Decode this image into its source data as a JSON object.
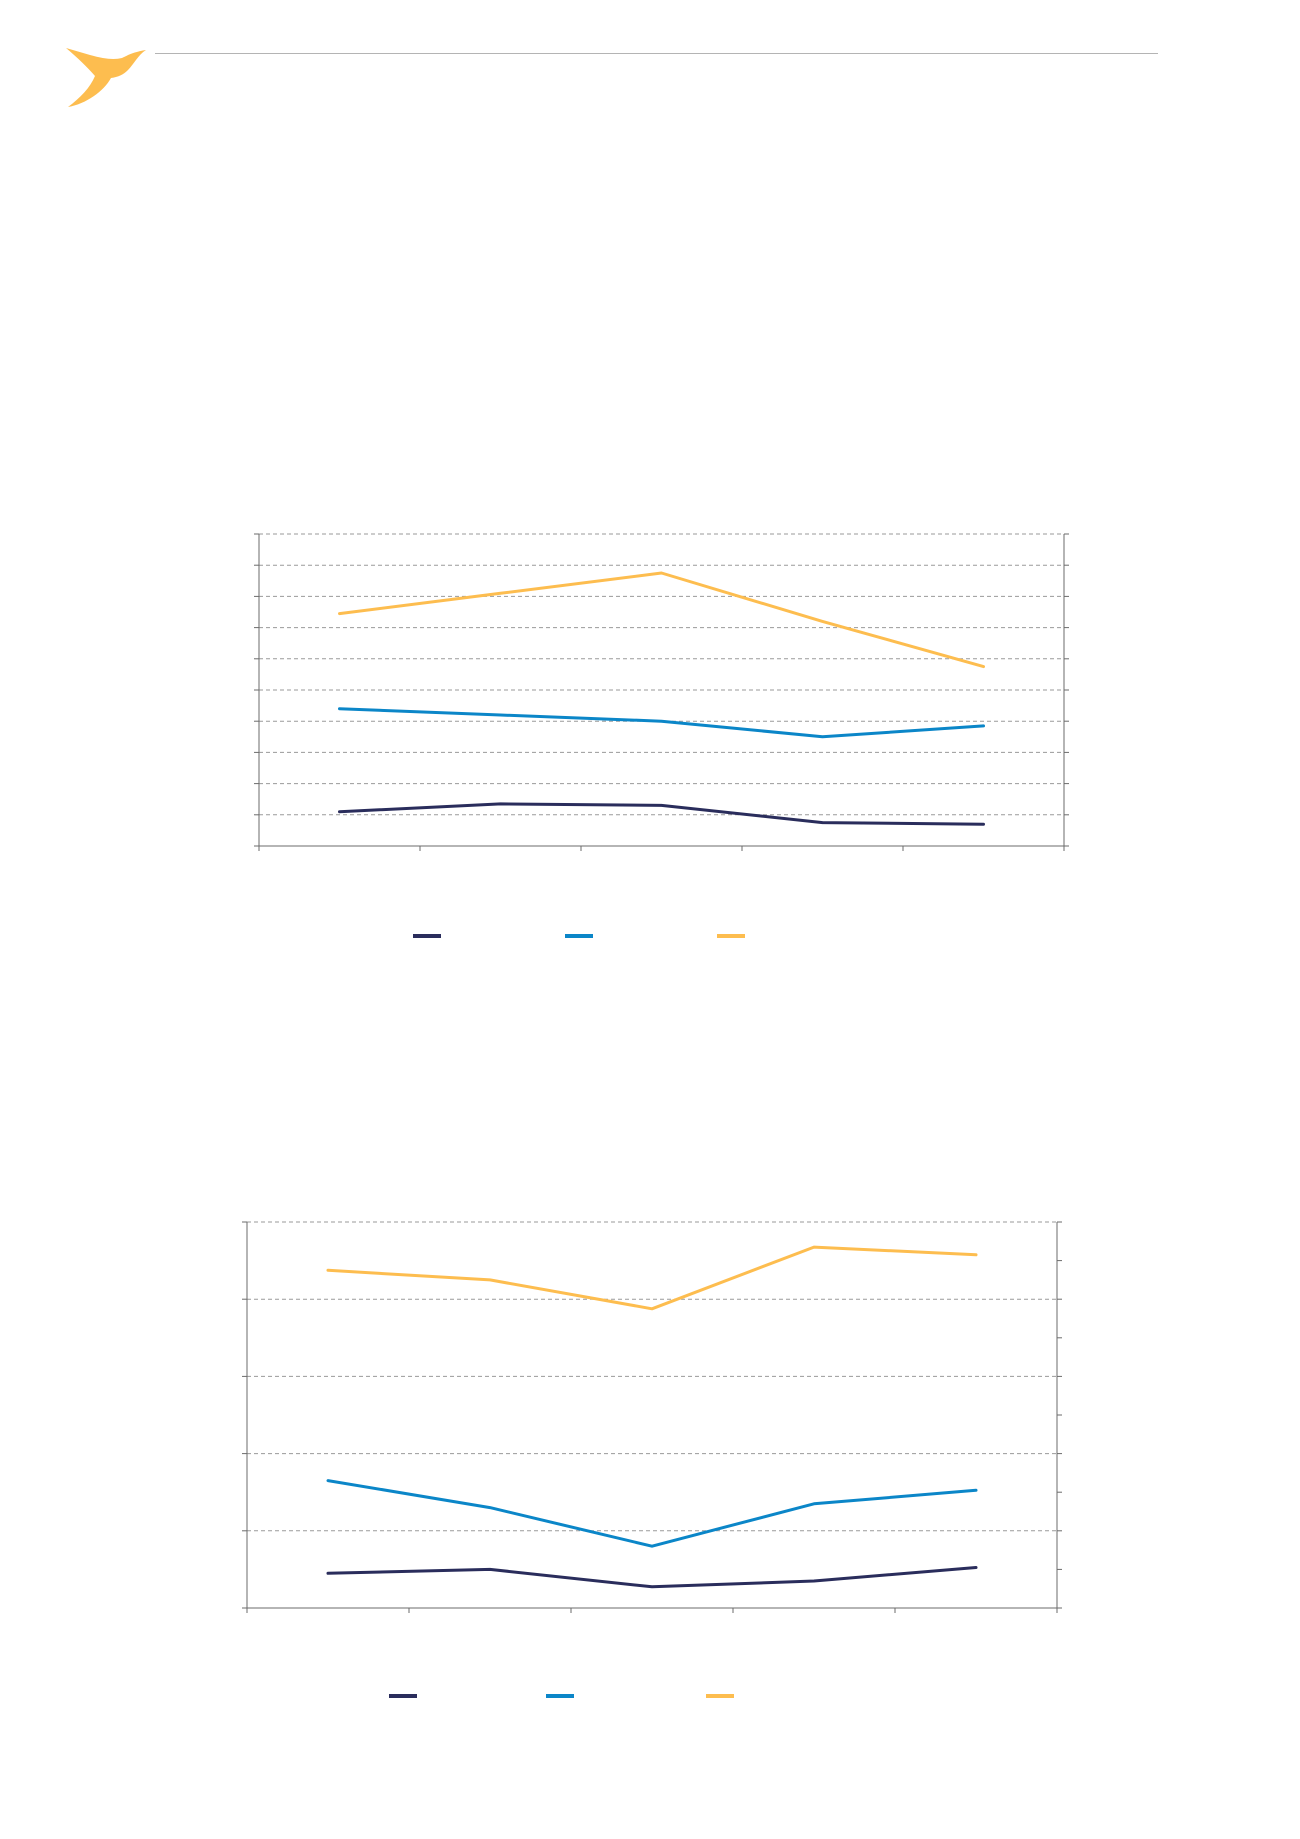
{
  "logo": {
    "icon": "bird-icon",
    "color": "#FDBD4F"
  },
  "header": {
    "rule_color": "#b4b4b4"
  },
  "chart_data": [
    {
      "type": "line",
      "categories": [
        "",
        "",
        "",
        "",
        ""
      ],
      "ylim": [
        0,
        10
      ],
      "yticks": 10,
      "grid": true,
      "legend": "bottom",
      "series": [
        {
          "color": "#2A2D5C",
          "values": [
            1.1,
            1.35,
            1.3,
            0.75,
            0.7
          ]
        },
        {
          "color": "#0B86C8",
          "values": [
            4.4,
            4.2,
            4.0,
            3.5,
            3.85
          ]
        },
        {
          "color": "#FDBD4F",
          "values": [
            7.45,
            8.1,
            8.75,
            7.2,
            5.75
          ]
        }
      ]
    },
    {
      "type": "line",
      "categories": [
        "",
        "",
        "",
        "",
        ""
      ],
      "ylim": [
        0,
        10
      ],
      "yticks": 10,
      "grid": true,
      "legend": "bottom",
      "series": [
        {
          "color": "#2A2D5C",
          "values": [
            0.9,
            1.0,
            0.55,
            0.7,
            1.05
          ]
        },
        {
          "color": "#0B86C8",
          "values": [
            3.3,
            2.6,
            1.6,
            2.7,
            3.05
          ]
        },
        {
          "color": "#FDBD4F",
          "values": [
            8.75,
            8.5,
            7.75,
            9.35,
            9.15
          ]
        }
      ]
    }
  ]
}
